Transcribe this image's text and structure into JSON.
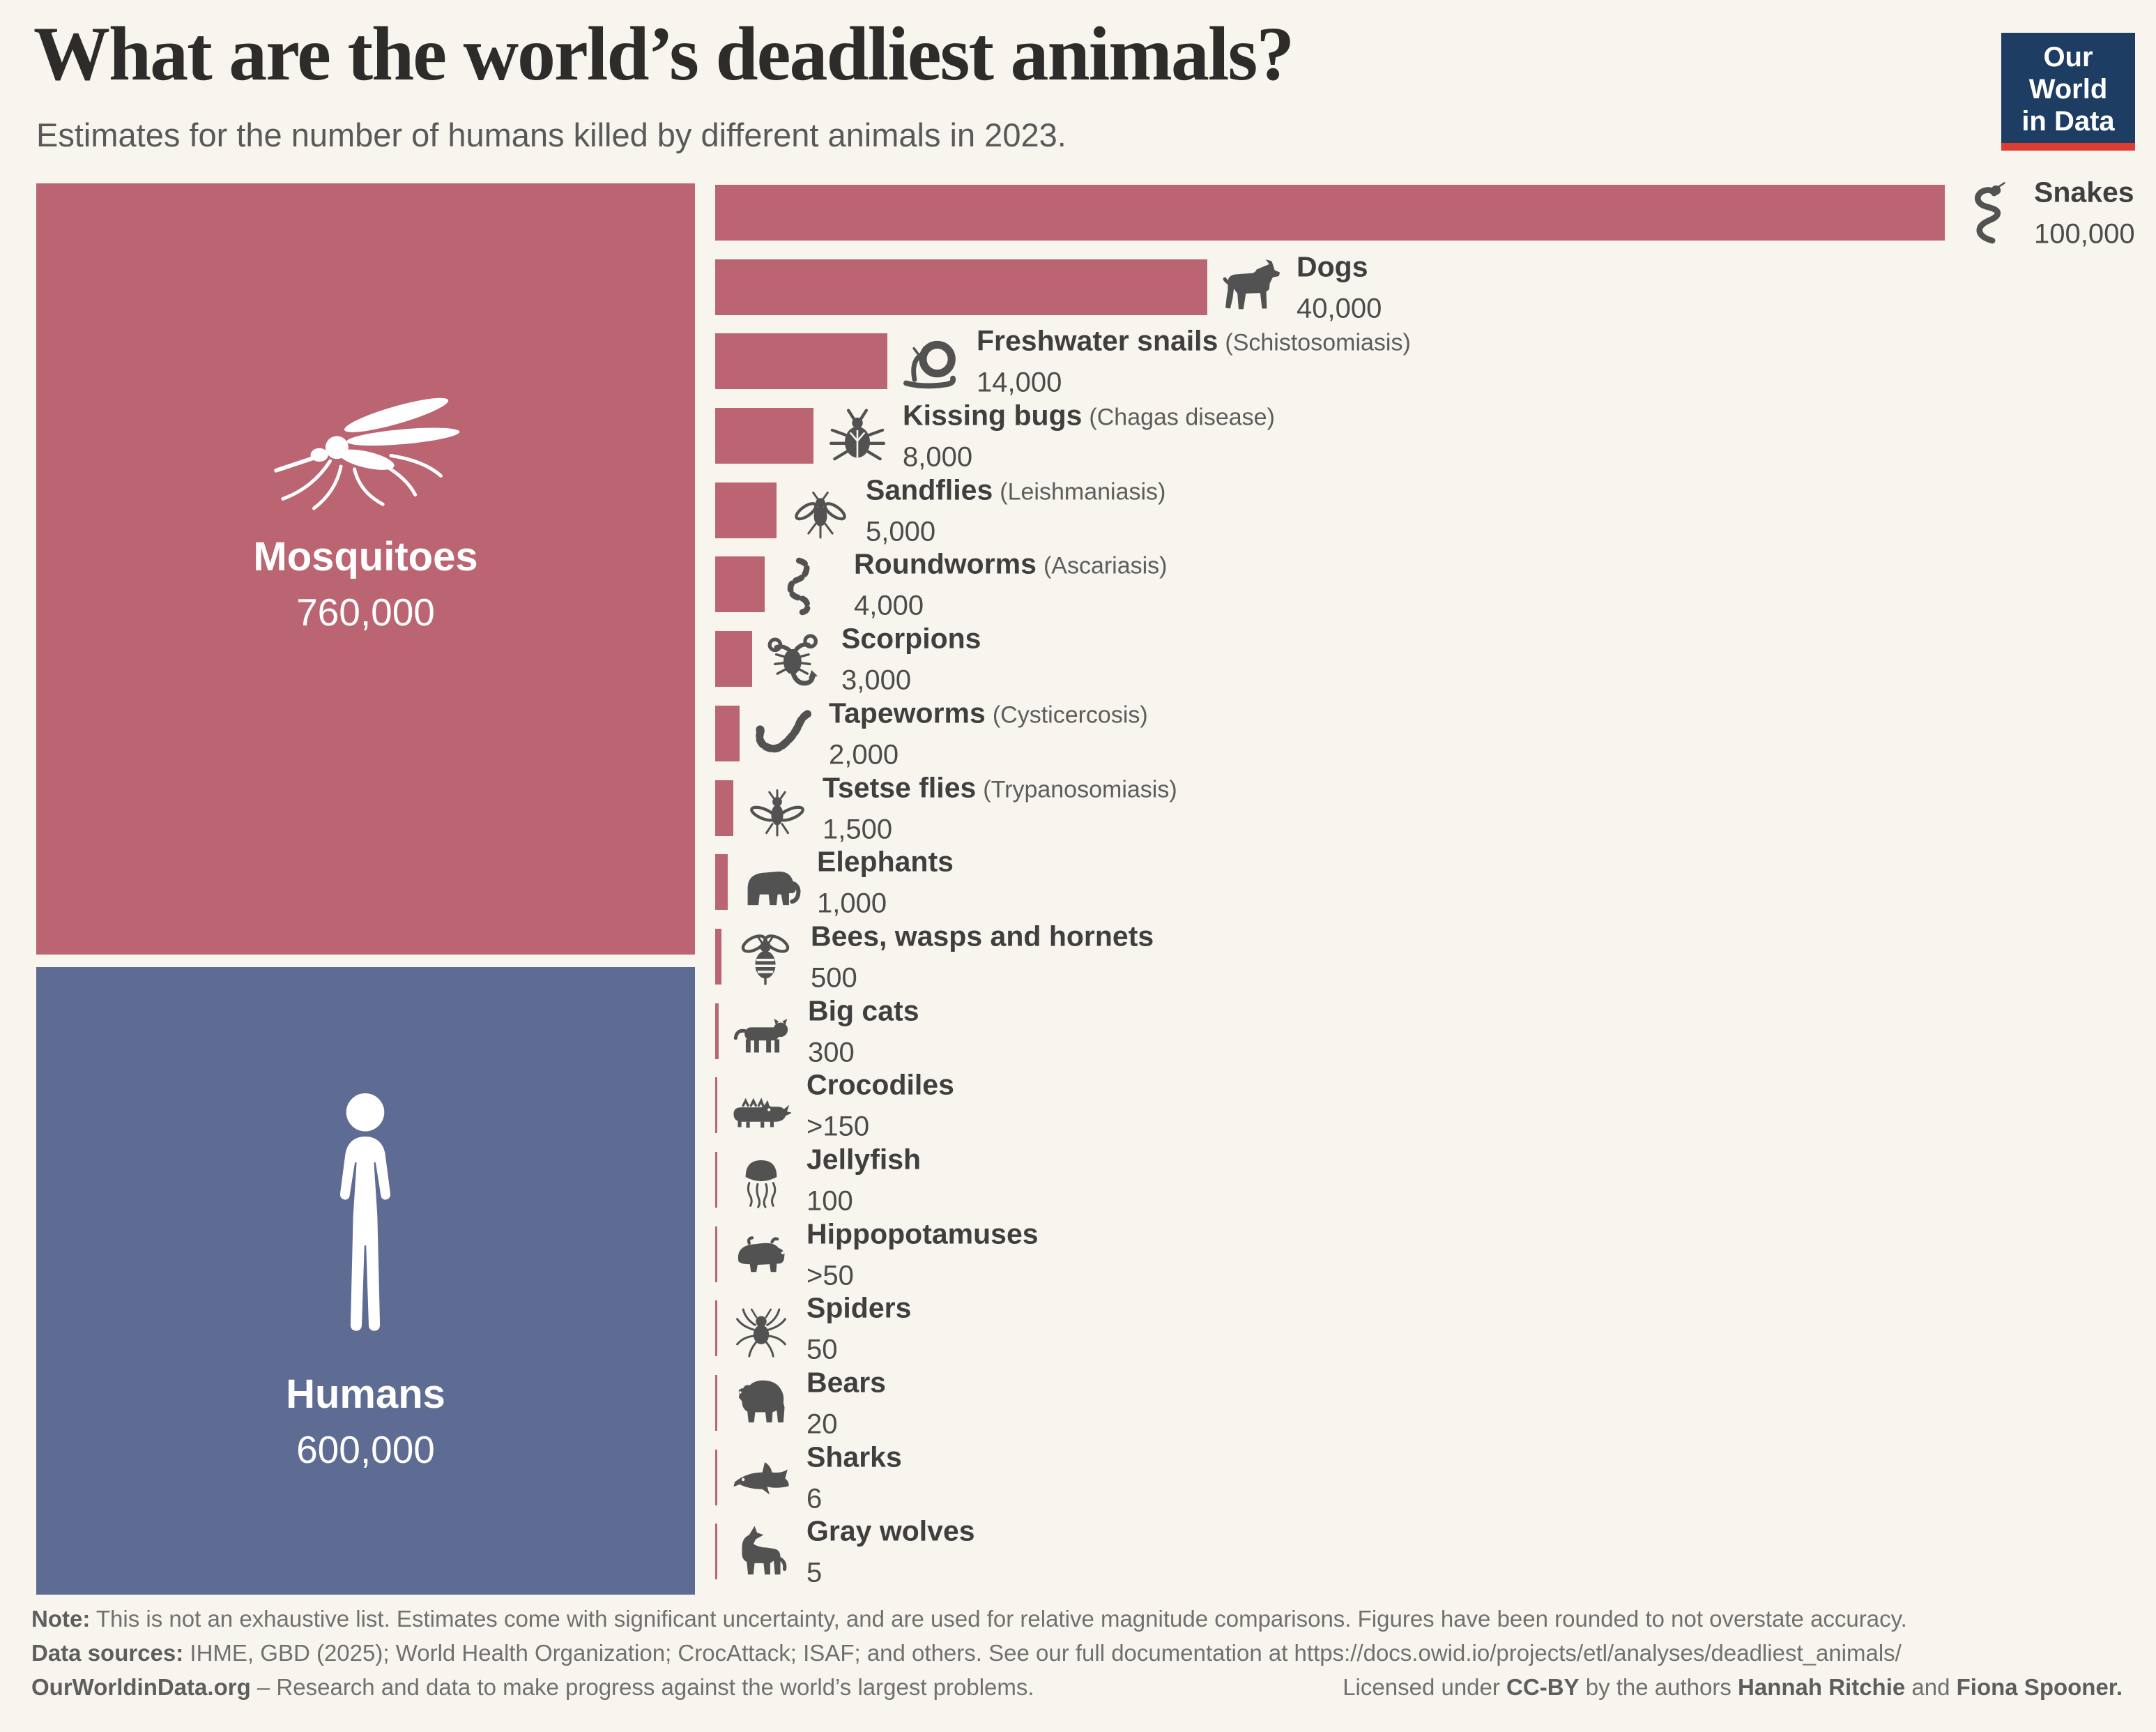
{
  "header": {
    "title": "What are the world’s deadliest animals?",
    "subtitle": "Estimates for the number of humans killed by different animals in 2023.",
    "logo_line1": "Our World",
    "logo_line2": "in Data"
  },
  "colors": {
    "background": "#f8f5ee",
    "bar_red": "#bb6573",
    "human_blue": "#5e6c94",
    "icon_gray": "#525252",
    "logo_navy": "#1d3d63",
    "logo_red": "#dc3c31"
  },
  "chart_data": {
    "type": "bar",
    "orientation": "horizontal",
    "title": "What are the world’s deadliest animals?",
    "subtitle": "Estimates for the number of humans killed by different animals in 2023.",
    "value_unit": "humans killed in 2023",
    "xlim": [
      0,
      100000
    ],
    "grid": false,
    "legend": false,
    "blocks": [
      {
        "name": "Mosquitoes",
        "value": 760000,
        "label": "760,000",
        "icon": "mosquito-icon",
        "color": "#bb6573"
      },
      {
        "name": "Humans",
        "value": 600000,
        "label": "600,000",
        "icon": "human-icon",
        "color": "#5e6c94"
      }
    ],
    "bars": [
      {
        "name": "Snakes",
        "disease": "",
        "value": 100000,
        "label": "100,000",
        "icon": "snake-icon"
      },
      {
        "name": "Dogs",
        "disease": "",
        "value": 40000,
        "label": "40,000",
        "icon": "dog-icon"
      },
      {
        "name": "Freshwater snails",
        "disease": "(Schistosomiasis)",
        "value": 14000,
        "label": "14,000",
        "icon": "snail-icon"
      },
      {
        "name": "Kissing bugs",
        "disease": "(Chagas disease)",
        "value": 8000,
        "label": "8,000",
        "icon": "kissing-bug-icon"
      },
      {
        "name": "Sandflies",
        "disease": "(Leishmaniasis)",
        "value": 5000,
        "label": "5,000",
        "icon": "sandfly-icon"
      },
      {
        "name": "Roundworms",
        "disease": "(Ascariasis)",
        "value": 4000,
        "label": "4,000",
        "icon": "roundworm-icon"
      },
      {
        "name": "Scorpions",
        "disease": "",
        "value": 3000,
        "label": "3,000",
        "icon": "scorpion-icon"
      },
      {
        "name": "Tapeworms",
        "disease": "(Cysticercosis)",
        "value": 2000,
        "label": "2,000",
        "icon": "tapeworm-icon"
      },
      {
        "name": "Tsetse flies",
        "disease": "(Trypanosomiasis)",
        "value": 1500,
        "label": "1,500",
        "icon": "tsetse-fly-icon"
      },
      {
        "name": "Elephants",
        "disease": "",
        "value": 1000,
        "label": "1,000",
        "icon": "elephant-icon"
      },
      {
        "name": "Bees, wasps and hornets",
        "disease": "",
        "value": 500,
        "label": "500",
        "icon": "bee-icon"
      },
      {
        "name": "Big cats",
        "disease": "",
        "value": 300,
        "label": "300",
        "icon": "big-cat-icon"
      },
      {
        "name": "Crocodiles",
        "disease": "",
        "value": 150,
        "label": ">150",
        "icon": "crocodile-icon"
      },
      {
        "name": "Jellyfish",
        "disease": "",
        "value": 100,
        "label": "100",
        "icon": "jellyfish-icon"
      },
      {
        "name": "Hippopotamuses",
        "disease": "",
        "value": 50,
        "label": ">50",
        "icon": "hippo-icon"
      },
      {
        "name": "Spiders",
        "disease": "",
        "value": 50,
        "label": "50",
        "icon": "spider-icon"
      },
      {
        "name": "Bears",
        "disease": "",
        "value": 20,
        "label": "20",
        "icon": "bear-icon"
      },
      {
        "name": "Sharks",
        "disease": "",
        "value": 6,
        "label": "6",
        "icon": "shark-icon"
      },
      {
        "name": "Gray wolves",
        "disease": "",
        "value": 5,
        "label": "5",
        "icon": "gray-wolf-icon"
      }
    ]
  },
  "footer": {
    "note_label": "Note:",
    "note_text": " This is not an exhaustive list. Estimates come with significant uncertainty, and are used for relative magnitude comparisons. Figures have been rounded to not overstate accuracy.",
    "sources_label": "Data sources:",
    "sources_text": " IHME, GBD (2025); World Health Organization; CrocAttack; ISAF; and others. See our full documentation at https://docs.owid.io/projects/etl/analyses/deadliest_animals/",
    "brand": "OurWorldinData.org",
    "brand_text": " – Research and data to make progress against the world’s largest problems.",
    "license_pre": "Licensed under ",
    "license_cc": "CC-BY",
    "license_mid": " by the authors ",
    "author1": "Hannah Ritchie",
    "license_and": " and ",
    "author2": "Fiona Spooner."
  }
}
